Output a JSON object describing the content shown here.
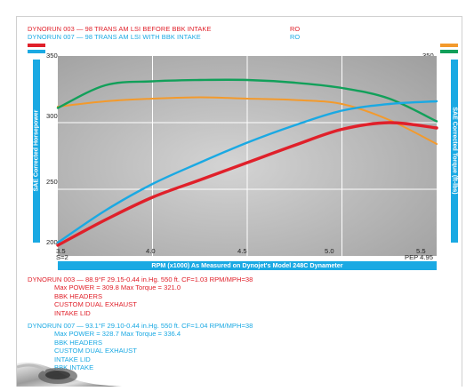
{
  "header": {
    "run1_line": "DYNORUN 003 — 98 TRANS AM LSI BEFORE BBK INTAKE",
    "run1_tag": "RO",
    "run2_line": "DYNORUN 007 — 98 TRANS AM LSI WITH BBK INTAKE",
    "run2_tag": "RO"
  },
  "colors": {
    "run1_power": "#e0202a",
    "run2_power": "#1aa9e3",
    "run1_torque": "#f39a2c",
    "run2_torque": "#12a05a",
    "plot_bg": "#b8b8b8",
    "axis_bar": "#1aa9e3"
  },
  "axes": {
    "left_title": "SAE Corrected Horsepower",
    "right_title": "SAE Corrected Torque (ft-lbs)",
    "x_title": "RPM (x1000) As Measured on Dynojet's Model 248C Dynameter",
    "left_ticks": [
      "350",
      "300",
      "250",
      "200"
    ],
    "right_ticks": [
      "350",
      "300",
      "250",
      "200"
    ],
    "x_ticks": [
      "3.5",
      "4.0",
      "4.5",
      "5.0",
      "5.5"
    ],
    "x_left_note": "S=2",
    "x_right_note": "PEP 4.95"
  },
  "chart_data": {
    "type": "line",
    "xlabel": "RPM (x1000) As Measured on Dynojet's Model 248C Dynameter",
    "ylabel": "SAE Corrected Horsepower",
    "y2label": "SAE Corrected Torque (ft-lbs)",
    "xlim": [
      3.5,
      5.5
    ],
    "ylim": [
      200,
      350
    ],
    "y2lim": [
      200,
      350
    ],
    "grid": true,
    "x": [
      3.5,
      3.75,
      4.0,
      4.25,
      4.5,
      4.75,
      5.0,
      5.25,
      5.5
    ],
    "series": [
      {
        "name": "DYNORUN 003 — 98 TRANS AM LSI BEFORE BBK INTAKE",
        "axis": "left",
        "color": "#e0202a",
        "values": [
          208,
          227,
          244,
          257,
          270,
          283,
          295,
          300,
          296
        ]
      },
      {
        "name": "DYNORUN 007 — 98 TRANS AM LSI WITH BBK INTAKE",
        "axis": "left",
        "color": "#1aa9e3",
        "values": [
          210,
          234,
          254,
          270,
          285,
          298,
          309,
          314,
          316
        ]
      },
      {
        "name": "DYNORUN 003 — 98 TRANS AM LSI BEFORE BBK INTAKE",
        "axis": "right",
        "color": "#f39a2c",
        "values": [
          312,
          316,
          318,
          319,
          318,
          317,
          314,
          302,
          284
        ]
      },
      {
        "name": "DYNORUN 007 — 98 TRANS AM LSI WITH BBK INTAKE",
        "axis": "right",
        "color": "#12a05a",
        "values": [
          311,
          328,
          331,
          332,
          332,
          330,
          326,
          318,
          301
        ]
      }
    ]
  },
  "runs": [
    {
      "line1": "DYNORUN 003 — 88.9°F   29.15-0.44 in.Hg.   550 ft.   CF=1.03   RPM/MPH=38",
      "line2": "Max POWER = 309.8    Max Torque = 321.0",
      "mods": [
        "BBK HEADERS",
        "CUSTOM DUAL EXHAUST",
        "INTAKE LID"
      ]
    },
    {
      "line1": "DYNORUN 007 — 93.1°F   29.10-0.44 in.Hg.   550 ft.   CF=1.04   RPM/MPH=38",
      "line2": "Max POWER = 328.7    Max Torque = 336.4",
      "mods": [
        "BBK HEADERS",
        "CUSTOM DUAL EXHAUST",
        "INTAKE LID",
        "BBK INTAKE"
      ]
    }
  ]
}
